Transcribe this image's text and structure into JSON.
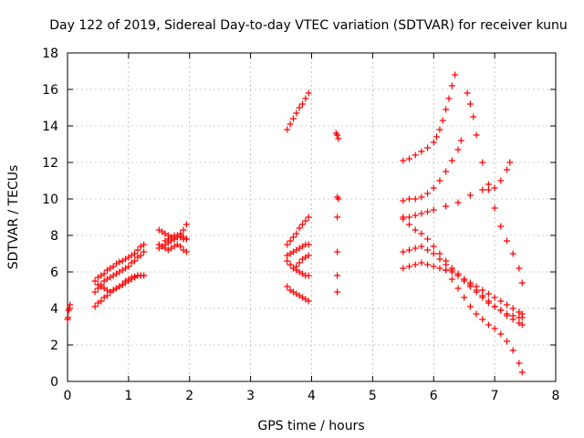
{
  "chart_data": {
    "type": "scatter",
    "title": "Day 122 of 2019, Sidereal Day-to-day VTEC variation (SDTVAR) for receiver kunu",
    "xlabel": "GPS time / hours",
    "ylabel": "SDTVAR / TECUs",
    "xlim": [
      0,
      8
    ],
    "ylim": [
      0,
      18
    ],
    "xticks": [
      "0",
      "1",
      "2",
      "3",
      "4",
      "5",
      "6",
      "7",
      "8"
    ],
    "yticks": [
      "0",
      "2",
      "4",
      "6",
      "8",
      "10",
      "12",
      "14",
      "16",
      "18"
    ],
    "grid": true,
    "marker": "+",
    "color": "#ff0000",
    "series": [
      {
        "name": "s1",
        "x": [
          0,
          0.01,
          0.02,
          0.03,
          0.04
        ],
        "y": [
          3.4,
          3.5,
          3.9,
          4.0,
          4.2
        ]
      },
      {
        "name": "s2",
        "x": [
          0.45,
          0.5,
          0.55,
          0.6,
          0.65,
          0.7,
          0.75,
          0.8,
          0.85,
          0.9,
          0.95,
          1.0,
          1.05,
          1.1,
          1.15,
          1.2,
          1.25
        ],
        "y": [
          5.5,
          5.7,
          5.8,
          5.9,
          6.1,
          6.2,
          6.3,
          6.45,
          6.55,
          6.6,
          6.7,
          6.8,
          6.9,
          7.0,
          7.2,
          7.4,
          7.5
        ]
      },
      {
        "name": "s3",
        "x": [
          0.45,
          0.5,
          0.55,
          0.6,
          0.65,
          0.7,
          0.75,
          0.8,
          0.85,
          0.9,
          0.95,
          1.0,
          1.05,
          1.1,
          1.15,
          1.2,
          1.25
        ],
        "y": [
          4.9,
          5.1,
          5.3,
          5.5,
          5.6,
          5.7,
          5.8,
          5.9,
          6.0,
          6.1,
          6.2,
          6.3,
          6.5,
          6.6,
          6.8,
          6.9,
          7.1
        ]
      },
      {
        "name": "s4",
        "x": [
          0.45,
          0.5,
          0.55,
          0.6,
          0.65,
          0.7,
          0.75,
          0.8,
          0.85,
          0.9,
          0.95,
          1.0,
          1.05,
          1.1,
          1.15,
          1.2,
          1.25
        ],
        "y": [
          4.1,
          4.3,
          4.4,
          4.6,
          4.7,
          4.9,
          5.0,
          5.1,
          5.2,
          5.3,
          5.5,
          5.6,
          5.7,
          5.75,
          5.8,
          5.8,
          5.8
        ]
      },
      {
        "name": "s5",
        "x": [
          0.5,
          0.55,
          0.6,
          0.65,
          0.7,
          0.75,
          0.8,
          0.85,
          0.9,
          0.95,
          1.0,
          1.05,
          1.1,
          1.15,
          1.2,
          1.25
        ],
        "y": [
          5.3,
          5.2,
          5.1,
          5.0,
          4.9,
          5.0,
          5.1,
          5.2,
          5.3,
          5.4,
          5.5,
          5.6,
          5.7,
          5.8,
          5.8,
          5.8
        ]
      },
      {
        "name": "s6",
        "x": [
          1.5,
          1.55,
          1.6,
          1.65,
          1.7,
          1.75,
          1.8,
          1.85,
          1.9,
          1.95
        ],
        "y": [
          8.3,
          8.2,
          8.1,
          8.0,
          7.9,
          7.8,
          7.9,
          8.1,
          8.3,
          8.6
        ]
      },
      {
        "name": "s7",
        "x": [
          1.5,
          1.55,
          1.6,
          1.65,
          1.7,
          1.75,
          1.8,
          1.85,
          1.9,
          1.95
        ],
        "y": [
          7.3,
          7.4,
          7.5,
          7.6,
          7.7,
          7.8,
          7.9,
          8.0,
          7.9,
          7.8
        ]
      },
      {
        "name": "s8",
        "x": [
          1.5,
          1.55,
          1.6,
          1.65,
          1.7,
          1.75,
          1.8,
          1.85,
          1.9,
          1.95
        ],
        "y": [
          7.5,
          7.4,
          7.3,
          7.2,
          7.3,
          7.4,
          7.5,
          7.4,
          7.2,
          7.1
        ]
      },
      {
        "name": "s9",
        "x": [
          1.6,
          1.65,
          1.7,
          1.75,
          1.8,
          1.85,
          1.9,
          1.95
        ],
        "y": [
          7.7,
          7.8,
          7.9,
          8.0,
          8.0,
          7.9,
          7.8,
          7.8
        ]
      },
      {
        "name": "s10",
        "x": [
          3.6,
          3.65,
          3.7,
          3.75,
          3.8,
          3.85,
          3.9,
          3.95
        ],
        "y": [
          13.8,
          14.1,
          14.4,
          14.7,
          15.0,
          15.2,
          15.5,
          15.8
        ]
      },
      {
        "name": "s11",
        "x": [
          3.6,
          3.65,
          3.7,
          3.75,
          3.8,
          3.85,
          3.9,
          3.95
        ],
        "y": [
          7.5,
          7.7,
          7.9,
          8.1,
          8.4,
          8.6,
          8.8,
          9.0
        ]
      },
      {
        "name": "s12",
        "x": [
          3.6,
          3.65,
          3.7,
          3.75,
          3.8,
          3.85,
          3.9,
          3.95
        ],
        "y": [
          6.9,
          7.0,
          7.1,
          7.2,
          7.3,
          7.4,
          7.5,
          7.5
        ]
      },
      {
        "name": "s13",
        "x": [
          3.6,
          3.65,
          3.7,
          3.75,
          3.8,
          3.85,
          3.9,
          3.95
        ],
        "y": [
          6.6,
          6.4,
          6.2,
          6.1,
          6.0,
          5.9,
          5.8,
          5.8
        ]
      },
      {
        "name": "s14",
        "x": [
          3.6,
          3.65,
          3.7,
          3.75,
          3.8,
          3.85,
          3.9,
          3.95
        ],
        "y": [
          5.2,
          5.0,
          4.9,
          4.8,
          4.7,
          4.6,
          4.5,
          4.4
        ]
      },
      {
        "name": "s15",
        "x": [
          3.75,
          3.8,
          3.85,
          3.9,
          3.95
        ],
        "y": [
          6.3,
          6.5,
          6.7,
          6.8,
          6.9
        ]
      },
      {
        "name": "s16",
        "x": [
          4.4,
          4.42,
          4.44
        ],
        "y": [
          13.6,
          13.5,
          13.3
        ]
      },
      {
        "name": "s17",
        "x": [
          4.42,
          4.44
        ],
        "y": [
          10.1,
          10.0
        ]
      },
      {
        "name": "s18",
        "x": [
          4.42
        ],
        "y": [
          9.0
        ]
      },
      {
        "name": "s19",
        "x": [
          4.42
        ],
        "y": [
          7.1
        ]
      },
      {
        "name": "s20",
        "x": [
          4.42
        ],
        "y": [
          5.8
        ]
      },
      {
        "name": "s21",
        "x": [
          4.42
        ],
        "y": [
          4.9
        ]
      },
      {
        "name": "s22",
        "x": [
          5.5,
          5.6,
          5.7,
          5.8,
          5.9,
          6.0,
          6.05,
          6.1,
          6.15,
          6.2,
          6.25,
          6.3,
          6.35
        ],
        "y": [
          12.1,
          12.2,
          12.4,
          12.6,
          12.8,
          13.1,
          13.4,
          13.8,
          14.3,
          14.9,
          15.5,
          16.2,
          16.8
        ]
      },
      {
        "name": "s23",
        "x": [
          5.5,
          5.6,
          5.7,
          5.8,
          5.9,
          6.0,
          6.1,
          6.2,
          6.3,
          6.4,
          6.45
        ],
        "y": [
          9.9,
          10.0,
          10.0,
          10.1,
          10.3,
          10.6,
          11.0,
          11.5,
          12.1,
          12.7,
          13.2
        ]
      },
      {
        "name": "s24",
        "x": [
          5.5,
          5.6,
          5.7,
          5.8,
          5.9,
          6.0,
          6.2,
          6.4,
          6.6,
          6.8,
          6.9,
          7.0,
          7.1,
          7.2,
          7.25
        ],
        "y": [
          9.0,
          9.0,
          9.1,
          9.2,
          9.3,
          9.4,
          9.6,
          9.8,
          10.2,
          10.5,
          10.5,
          10.6,
          11.0,
          11.6,
          12.0
        ]
      },
      {
        "name": "s25",
        "x": [
          6.55,
          6.6,
          6.65,
          6.7,
          6.8,
          6.9,
          7.0,
          7.1,
          7.2,
          7.3,
          7.4,
          7.45
        ],
        "y": [
          15.8,
          15.2,
          14.5,
          13.5,
          12.0,
          10.8,
          9.5,
          8.5,
          7.7,
          7.0,
          6.2,
          5.4
        ]
      },
      {
        "name": "s26",
        "x": [
          5.5,
          5.6,
          5.7,
          5.8,
          5.9,
          6.0,
          6.1,
          6.2,
          6.3,
          6.4,
          6.5,
          6.6,
          6.7,
          6.8,
          6.9,
          7.0,
          7.1,
          7.2,
          7.3,
          7.4,
          7.45
        ],
        "y": [
          8.9,
          8.6,
          8.3,
          8.1,
          7.8,
          7.4,
          7.0,
          6.6,
          6.2,
          5.9,
          5.6,
          5.4,
          5.2,
          5.0,
          4.8,
          4.6,
          4.4,
          4.2,
          4.0,
          3.8,
          3.7
        ]
      },
      {
        "name": "s27",
        "x": [
          5.5,
          5.6,
          5.7,
          5.8,
          5.9,
          6.0,
          6.1,
          6.2,
          6.3,
          6.4,
          6.5,
          6.6,
          6.7,
          6.8,
          6.9,
          7.0,
          7.1,
          7.2,
          7.3,
          7.4,
          7.45
        ],
        "y": [
          7.1,
          7.2,
          7.3,
          7.4,
          7.2,
          7.0,
          6.7,
          6.4,
          6.1,
          5.8,
          5.5,
          5.2,
          4.9,
          4.6,
          4.3,
          4.1,
          3.9,
          3.6,
          3.4,
          3.2,
          3.1
        ]
      },
      {
        "name": "s28",
        "x": [
          5.5,
          5.6,
          5.7,
          5.8,
          5.9,
          6.0,
          6.1,
          6.2,
          6.3,
          6.4,
          6.5,
          6.6,
          6.7,
          6.8,
          6.9,
          7.0,
          7.1,
          7.2,
          7.3,
          7.4,
          7.45
        ],
        "y": [
          6.2,
          6.3,
          6.4,
          6.5,
          6.4,
          6.3,
          6.2,
          6.1,
          6.0,
          5.8,
          5.6,
          5.3,
          5.0,
          4.7,
          4.4,
          4.1,
          3.9,
          3.7,
          3.6,
          3.5,
          3.5
        ]
      },
      {
        "name": "s29",
        "x": [
          6.2,
          6.3,
          6.4,
          6.5,
          6.6,
          6.7,
          6.8,
          6.9,
          7.0,
          7.1,
          7.2,
          7.3,
          7.4,
          7.45
        ],
        "y": [
          6.1,
          5.6,
          5.1,
          4.6,
          4.1,
          3.7,
          3.4,
          3.1,
          2.9,
          2.6,
          2.2,
          1.7,
          1.0,
          0.5
        ]
      }
    ]
  }
}
